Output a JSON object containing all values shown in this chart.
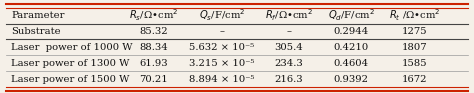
{
  "rows": [
    [
      "Substrate",
      "85.32",
      "–",
      "–",
      "0.2944",
      "1275"
    ],
    [
      "Laser  power of 1000 W",
      "88.34",
      "5.632 × 10⁻⁵",
      "305.4",
      "0.4210",
      "1807"
    ],
    [
      "Laser power of 1300 W",
      "61.93",
      "3.215 × 10⁻⁵",
      "234.3",
      "0.4604",
      "1585"
    ],
    [
      "Laser power of 1500 W",
      "70.21",
      "8.894 × 10⁻⁵",
      "216.3",
      "0.9392",
      "1672"
    ]
  ],
  "border_color": "#cc2200",
  "header_line_color": "#444444",
  "row_line_color": "#999999",
  "text_color": "#111111",
  "bg_color": "#f5f0e8",
  "header_fontsize": 7.2,
  "cell_fontsize": 7.2,
  "col_widths": [
    0.255,
    0.135,
    0.155,
    0.13,
    0.135,
    0.135
  ],
  "xmin": 0.01,
  "xmax": 0.99
}
